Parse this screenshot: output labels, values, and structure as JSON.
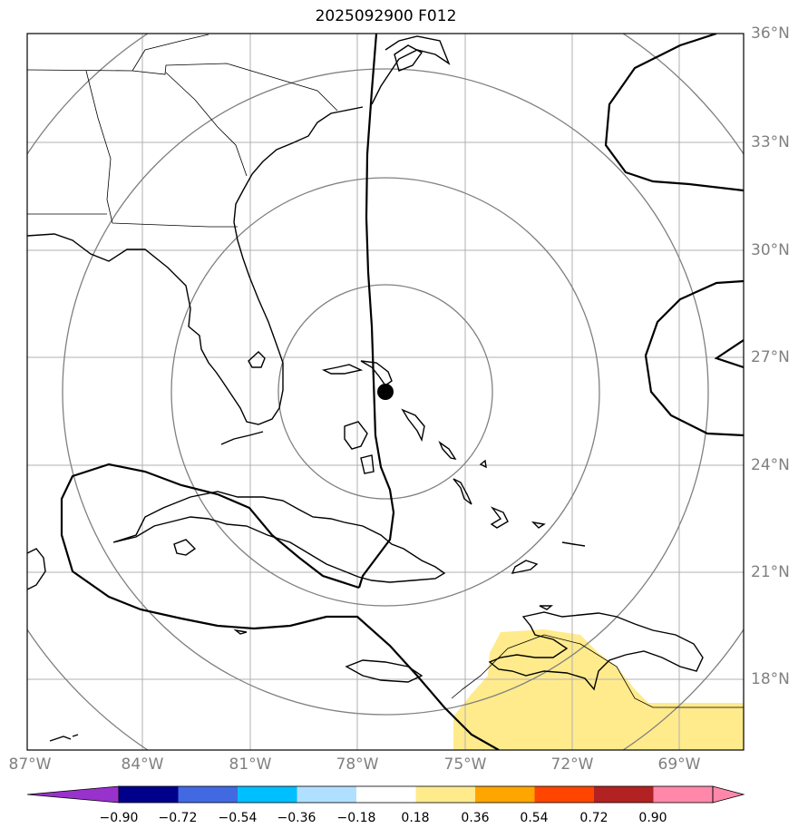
{
  "title": "2025092900 F012",
  "lat_labels": [
    "36°N",
    "33°N",
    "30°N",
    "27°N",
    "24°N",
    "21°N",
    "18°N"
  ],
  "lon_labels": [
    "87°W",
    "84°W",
    "81°W",
    "78°W",
    "75°W",
    "72°W",
    "69°W"
  ],
  "colorbar": {
    "ticks": [
      "−0.90",
      "−0.72",
      "−0.54",
      "−0.36",
      "−0.18",
      "0.18",
      "0.36",
      "0.54",
      "0.72",
      "0.90"
    ],
    "colors": [
      "#9932CC",
      "#00008B",
      "#4169E1",
      "#00BFFF",
      "#B0E0FF",
      "#FFFFFF",
      "#FFEB8C",
      "#FFA500",
      "#FF4500",
      "#B22222",
      "#FF88AA"
    ]
  },
  "colors": {
    "fill_positive": "#FFEB8C",
    "range_rings": "#808080",
    "grid": "#b0b0b0",
    "contour": "#000000"
  },
  "center_marker": "storm-center-dot-icon"
}
